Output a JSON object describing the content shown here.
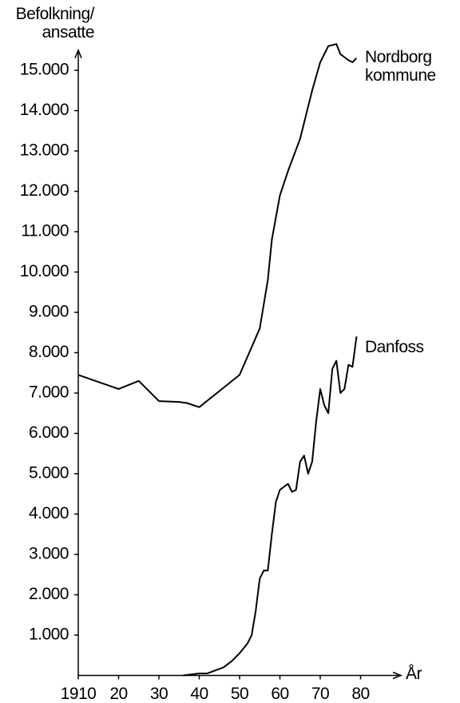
{
  "chart_data": {
    "type": "line",
    "y_label": "Befolkning/ ansatte",
    "x_label": "År",
    "xlim": [
      1910,
      1990
    ],
    "xticks": [
      1910,
      {
        "value": 1920,
        "label": "20"
      },
      {
        "value": 1930,
        "label": "30"
      },
      {
        "value": 1940,
        "label": "40"
      },
      {
        "value": 1950,
        "label": "50"
      },
      {
        "value": 1960,
        "label": "60"
      },
      {
        "value": 1970,
        "label": "70"
      },
      {
        "value": 1980,
        "label": "80"
      }
    ],
    "ylim": [
      0,
      15500
    ],
    "yticks": [
      {
        "value": 1000,
        "label": "1.000"
      },
      {
        "value": 2000,
        "label": "2.000"
      },
      {
        "value": 3000,
        "label": "3.000"
      },
      {
        "value": 4000,
        "label": "4.000"
      },
      {
        "value": 5000,
        "label": "5.000"
      },
      {
        "value": 6000,
        "label": "6.000"
      },
      {
        "value": 7000,
        "label": "7.000"
      },
      {
        "value": 8000,
        "label": "8.000"
      },
      {
        "value": 9000,
        "label": "9.000"
      },
      {
        "value": 10000,
        "label": "10.000"
      },
      {
        "value": 11000,
        "label": "11.000"
      },
      {
        "value": 12000,
        "label": "12.000"
      },
      {
        "value": 13000,
        "label": "13.000"
      },
      {
        "value": 14000,
        "label": "14.000"
      },
      {
        "value": 15000,
        "label": "15.000"
      }
    ],
    "series": [
      {
        "name": "Nordborg kommune",
        "color": "#000000",
        "x": [
          1910,
          1920,
          1925,
          1930,
          1935,
          1937,
          1940,
          1945,
          1950,
          1955,
          1957,
          1958,
          1960,
          1962,
          1965,
          1968,
          1970,
          1972,
          1974,
          1975,
          1977,
          1978,
          1979
        ],
        "values": [
          7450,
          7100,
          7300,
          6800,
          6780,
          6750,
          6650,
          7050,
          7450,
          8600,
          9800,
          10800,
          11900,
          12500,
          13300,
          14500,
          15200,
          15600,
          15650,
          15400,
          15250,
          15200,
          15300
        ]
      },
      {
        "name": "Danfoss",
        "color": "#000000",
        "x": [
          1936,
          1940,
          1942,
          1946,
          1948,
          1950,
          1952,
          1953,
          1954,
          1955,
          1956,
          1957,
          1958,
          1959,
          1960,
          1962,
          1963,
          1964,
          1965,
          1966,
          1967,
          1968,
          1969,
          1970,
          1971,
          1972,
          1973,
          1974,
          1975,
          1976,
          1977,
          1978,
          1979
        ],
        "values": [
          0,
          50,
          50,
          200,
          350,
          550,
          800,
          1000,
          1600,
          2400,
          2600,
          2600,
          3500,
          4300,
          4600,
          4750,
          4550,
          4600,
          5300,
          5450,
          5000,
          5300,
          6300,
          7100,
          6700,
          6500,
          7600,
          7800,
          7000,
          7100,
          7700,
          7650,
          8400
        ]
      }
    ]
  }
}
